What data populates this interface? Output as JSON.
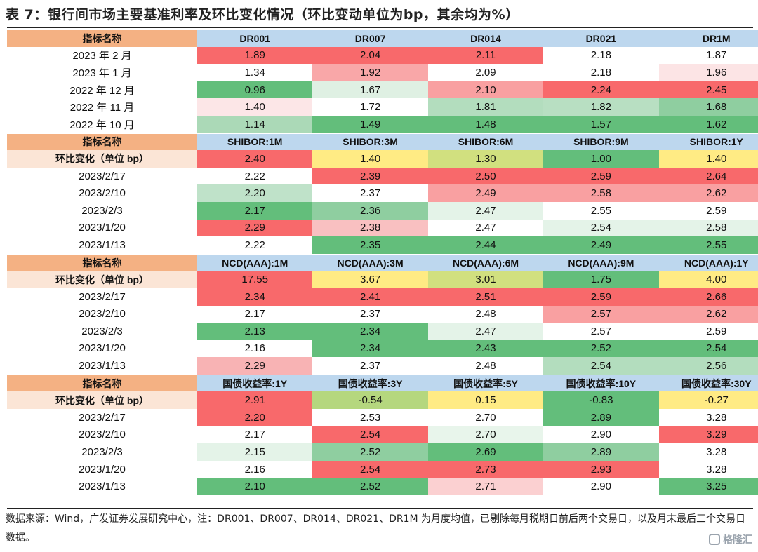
{
  "title": "表 7：银行间市场主要基准利率及环比变化情况（环比变动单位为bp，其余均为%）",
  "note": "数据来源：Wind，广发证券发展研究中心，注：DR001、DR007、DR014、DR021、DR1M 为月度均值，已剔除每月税期日前后两个交易日，以及月末最后三个交易日数据。",
  "watermark": "格隆汇",
  "colors": {
    "header_label_bg": "#f4b183",
    "header_bg": "#bdd7ee",
    "change_label_bg": "#fbe5d6",
    "red": "#f8696b",
    "green": "#63be7b",
    "yellow": "#ffeb84"
  },
  "chart_data": {
    "type": "table",
    "sections": [
      {
        "header": [
          "指标名称",
          "DR001",
          "DR007",
          "DR014",
          "DR021",
          "DR1M"
        ],
        "rows": [
          {
            "label": "2023 年 2 月",
            "values": [
              "1.89",
              "2.04",
              "2.11",
              "2.18",
              "1.87"
            ],
            "colors": [
              "#f8696b",
              "#f8696b",
              "#f8696b",
              "#ffffff",
              "#ffffff"
            ]
          },
          {
            "label": "2023 年 1 月",
            "values": [
              "1.34",
              "1.92",
              "2.09",
              "2.18",
              "1.96"
            ],
            "colors": [
              "#ffffff",
              "#f9a7a8",
              "#ffffff",
              "#ffffff",
              "#fce4e5"
            ]
          },
          {
            "label": "2022 年 12 月",
            "values": [
              "0.96",
              "1.67",
              "2.10",
              "2.24",
              "2.45"
            ],
            "colors": [
              "#63be7b",
              "#dff0e3",
              "#f9a0a1",
              "#f8696b",
              "#f8696b"
            ]
          },
          {
            "label": "2022 年 11 月",
            "values": [
              "1.40",
              "1.72",
              "1.81",
              "1.82",
              "1.68"
            ],
            "colors": [
              "#fce6e7",
              "#ffffff",
              "#b3ddbe",
              "#b8dfc2",
              "#8fcea0"
            ]
          },
          {
            "label": "2022 年 10 月",
            "values": [
              "1.14",
              "1.49",
              "1.48",
              "1.57",
              "1.62"
            ],
            "colors": [
              "#abd9b7",
              "#63be7b",
              "#63be7b",
              "#63be7b",
              "#63be7b"
            ]
          }
        ]
      },
      {
        "header": [
          "指标名称",
          "SHIBOR:1M",
          "SHIBOR:3M",
          "SHIBOR:6M",
          "SHIBOR:9M",
          "SHIBOR:1Y"
        ],
        "change": {
          "label": "环比变化（单位 bp）",
          "values": [
            "2.40",
            "1.40",
            "1.30",
            "1.00",
            "1.40"
          ],
          "colors": [
            "#f8696b",
            "#ffeb84",
            "#d1e07f",
            "#63be7b",
            "#ffeb84"
          ]
        },
        "rows": [
          {
            "label": "2023/2/17",
            "values": [
              "2.22",
              "2.39",
              "2.50",
              "2.59",
              "2.64"
            ],
            "colors": [
              "#ffffff",
              "#f8696b",
              "#f8696b",
              "#f8696b",
              "#f8696b"
            ]
          },
          {
            "label": "2023/2/10",
            "values": [
              "2.20",
              "2.37",
              "2.49",
              "2.58",
              "2.62"
            ],
            "colors": [
              "#bfe2c9",
              "#ffffff",
              "#f9a0a1",
              "#f9a0a1",
              "#f9a0a1"
            ]
          },
          {
            "label": "2023/2/3",
            "values": [
              "2.17",
              "2.36",
              "2.47",
              "2.55",
              "2.59"
            ],
            "colors": [
              "#63be7b",
              "#8fcea0",
              "#e4f3e8",
              "#ffffff",
              "#ffffff"
            ]
          },
          {
            "label": "2023/1/20",
            "values": [
              "2.29",
              "2.38",
              "2.47",
              "2.54",
              "2.58"
            ],
            "colors": [
              "#f8696b",
              "#f9c0c1",
              "#ffffff",
              "#e4f3e8",
              "#e4f3e8"
            ]
          },
          {
            "label": "2023/1/13",
            "values": [
              "2.22",
              "2.35",
              "2.44",
              "2.49",
              "2.55"
            ],
            "colors": [
              "#ffffff",
              "#63be7b",
              "#63be7b",
              "#63be7b",
              "#63be7b"
            ]
          }
        ]
      },
      {
        "header": [
          "指标名称",
          "NCD(AAA):1M",
          "NCD(AAA):3M",
          "NCD(AAA):6M",
          "NCD(AAA):9M",
          "NCD(AAA):1Y"
        ],
        "change": {
          "label": "环比变化（单位 bp）",
          "values": [
            "17.55",
            "3.67",
            "3.01",
            "1.75",
            "4.00"
          ],
          "colors": [
            "#f8696b",
            "#ffeb84",
            "#d1e07f",
            "#63be7b",
            "#ffeb84"
          ]
        },
        "rows": [
          {
            "label": "2023/2/17",
            "values": [
              "2.34",
              "2.41",
              "2.51",
              "2.59",
              "2.66"
            ],
            "colors": [
              "#f8696b",
              "#f8696b",
              "#f8696b",
              "#f8696b",
              "#f8696b"
            ]
          },
          {
            "label": "2023/2/10",
            "values": [
              "2.17",
              "2.37",
              "2.48",
              "2.57",
              "2.62"
            ],
            "colors": [
              "#ffffff",
              "#ffffff",
              "#ffffff",
              "#f9a0a1",
              "#f9a0a1"
            ]
          },
          {
            "label": "2023/2/3",
            "values": [
              "2.13",
              "2.34",
              "2.47",
              "2.57",
              "2.59"
            ],
            "colors": [
              "#63be7b",
              "#63be7b",
              "#e4f3e8",
              "#ffffff",
              "#ffffff"
            ]
          },
          {
            "label": "2023/1/20",
            "values": [
              "2.16",
              "2.34",
              "2.43",
              "2.52",
              "2.54"
            ],
            "colors": [
              "#ffffff",
              "#63be7b",
              "#63be7b",
              "#63be7b",
              "#63be7b"
            ]
          },
          {
            "label": "2023/1/13",
            "values": [
              "2.29",
              "2.37",
              "2.48",
              "2.54",
              "2.56"
            ],
            "colors": [
              "#f8b3b4",
              "#ffffff",
              "#ffffff",
              "#b3ddbe",
              "#b3ddbe"
            ]
          }
        ]
      },
      {
        "header": [
          "指标名称",
          "国债收益率:1Y",
          "国债收益率:3Y",
          "国债收益率:5Y",
          "国债收益率:10Y",
          "国债收益率:30Y"
        ],
        "change": {
          "label": "环比变化（单位 bp）",
          "values": [
            "2.91",
            "-0.54",
            "0.15",
            "-0.83",
            "-0.27"
          ],
          "colors": [
            "#f8696b",
            "#b5d77e",
            "#ffeb84",
            "#63be7b",
            "#ffeb84"
          ]
        },
        "rows": [
          {
            "label": "2023/2/17",
            "values": [
              "2.20",
              "2.53",
              "2.70",
              "2.89",
              "3.28"
            ],
            "colors": [
              "#f8696b",
              "#ffffff",
              "#ffffff",
              "#63be7b",
              "#ffffff"
            ]
          },
          {
            "label": "2023/2/10",
            "values": [
              "2.17",
              "2.54",
              "2.70",
              "2.90",
              "3.29"
            ],
            "colors": [
              "#ffffff",
              "#f8696b",
              "#e8f5eb",
              "#ffffff",
              "#f8696b"
            ]
          },
          {
            "label": "2023/2/3",
            "values": [
              "2.15",
              "2.52",
              "2.69",
              "2.89",
              "3.28"
            ],
            "colors": [
              "#e4f3e8",
              "#8fcea0",
              "#63be7b",
              "#8fcea0",
              "#ffffff"
            ]
          },
          {
            "label": "2023/1/20",
            "values": [
              "2.16",
              "2.54",
              "2.73",
              "2.93",
              "3.28"
            ],
            "colors": [
              "#ffffff",
              "#f8696b",
              "#f8696b",
              "#f8696b",
              "#ffffff"
            ]
          },
          {
            "label": "2023/1/13",
            "values": [
              "2.10",
              "2.52",
              "2.71",
              "2.90",
              "3.25"
            ],
            "colors": [
              "#63be7b",
              "#63be7b",
              "#fbd0d1",
              "#ffffff",
              "#63be7b"
            ]
          }
        ]
      }
    ]
  }
}
